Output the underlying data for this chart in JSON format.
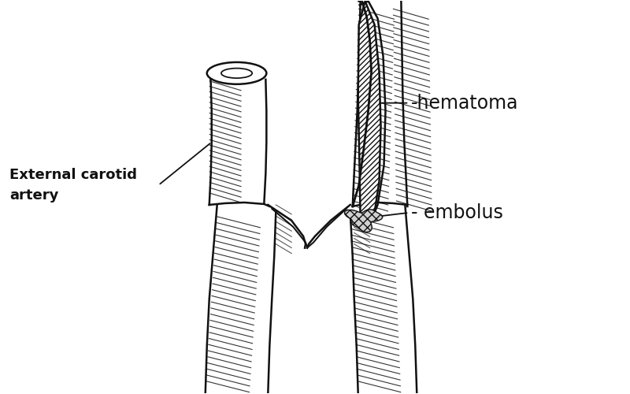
{
  "background_color": "#ffffff",
  "line_color": "#111111",
  "label_hematoma": "-hematoma",
  "label_embolus": "- embolus",
  "label_artery_line1": "External carotid",
  "label_artery_line2": "artery",
  "figsize": [
    8.0,
    5.0
  ],
  "dpi": 100
}
